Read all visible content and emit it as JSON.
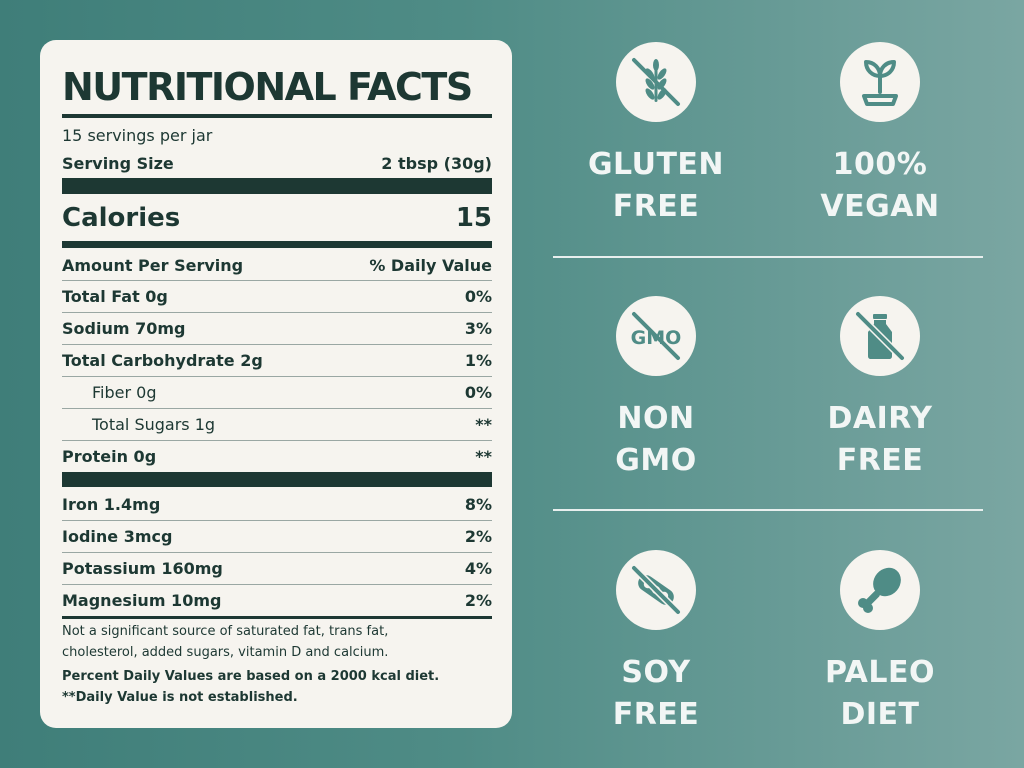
{
  "facts": {
    "title": "NUTRITIONAL FACTS",
    "servings_per_container": "15 servings per jar",
    "serving_size_label": "Serving Size",
    "serving_size_value": "2 tbsp (30g)",
    "calories_label": "Calories",
    "calories_value": "15",
    "header_left": "Amount Per Serving",
    "header_right": "% Daily Value",
    "nutrients": [
      {
        "name": "Total Fat 0g",
        "dv": "0%"
      },
      {
        "name": "Sodium 70mg",
        "dv": "3%"
      },
      {
        "name": "Total Carbohydrate 2g",
        "dv": "1%"
      },
      {
        "name": "Fiber 0g",
        "dv": "0%"
      },
      {
        "name": "Total Sugars 1g",
        "dv": "**"
      },
      {
        "name": "Protein 0g",
        "dv": "**"
      }
    ],
    "minerals": [
      {
        "name": "Iron 1.4mg",
        "dv": "8%"
      },
      {
        "name": "Iodine 3mcg",
        "dv": "2%"
      },
      {
        "name": "Potassium 160mg",
        "dv": "4%"
      },
      {
        "name": "Magnesium 10mg",
        "dv": "2%"
      }
    ],
    "footnote_1": "Not a significant source of saturated fat, trans fat,",
    "footnote_2": "cholesterol, added sugars, vitamin D and calcium.",
    "footnote_3": "Percent Daily Values are based on a 2000 kcal diet.",
    "footnote_4": "**Daily Value is not established."
  },
  "badges": [
    {
      "line1": "GLUTEN",
      "line2": "FREE",
      "icon": "wheat-crossed-icon"
    },
    {
      "line1": "100%",
      "line2": "VEGAN",
      "icon": "sprout-icon"
    },
    {
      "line1": "NON",
      "line2": "GMO",
      "icon": "gmo-crossed-icon",
      "icon_text": "GMO"
    },
    {
      "line1": "DAIRY",
      "line2": "FREE",
      "icon": "milk-bottle-crossed-icon"
    },
    {
      "line1": "SOY",
      "line2": "FREE",
      "icon": "soy-crossed-icon"
    },
    {
      "line1": "PALEO",
      "line2": "DIET",
      "icon": "drumstick-icon"
    }
  ],
  "colors": {
    "teal": "#4f8c86",
    "ink": "#1d3833",
    "card": "#f6f4ef"
  }
}
